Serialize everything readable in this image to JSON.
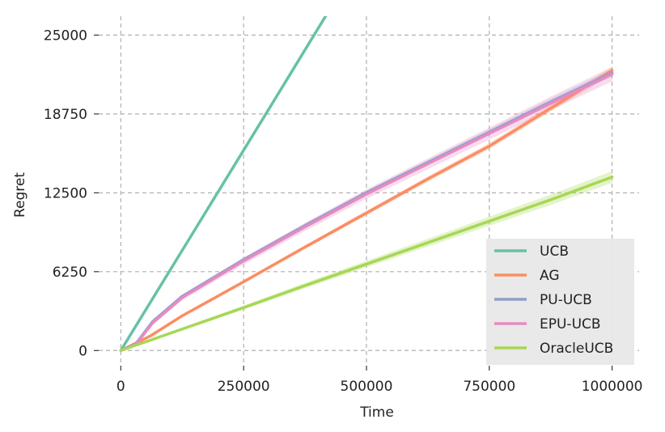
{
  "chart_data": {
    "type": "line",
    "title": "",
    "xlabel": "Time",
    "ylabel": "Regret",
    "xlim": [
      -45000,
      1055000
    ],
    "ylim": [
      -1200,
      26500
    ],
    "x_ticks": [
      0,
      250000,
      500000,
      750000,
      1000000
    ],
    "x_tick_labels": [
      "0",
      "250000",
      "500000",
      "750000",
      "1000000"
    ],
    "y_ticks": [
      0,
      6250,
      12500,
      18750,
      25000
    ],
    "y_tick_labels": [
      "0",
      "6250",
      "12500",
      "18750",
      "25000"
    ],
    "grid": true,
    "legend_position": "lower-right",
    "series": [
      {
        "name": "UCB",
        "color": "#66c2a5",
        "x": [
          0,
          100000,
          200000,
          300000,
          420000
        ],
        "y": [
          0,
          6350,
          12700,
          19050,
          26700
        ],
        "band": 0
      },
      {
        "name": "AG",
        "color": "#fc8d62",
        "x": [
          0,
          60000,
          125000,
          250000,
          375000,
          500000,
          625000,
          750000,
          875000,
          1000000
        ],
        "y": [
          0,
          1150,
          2750,
          5450,
          8200,
          10900,
          13600,
          16200,
          19200,
          22200
        ],
        "band": 250
      },
      {
        "name": "PU-UCB",
        "color": "#8da0cb",
        "x": [
          0,
          30000,
          65000,
          125000,
          250000,
          375000,
          500000,
          625000,
          750000,
          875000,
          1000000
        ],
        "y": [
          0,
          500,
          2300,
          4300,
          7200,
          9900,
          12500,
          14900,
          17300,
          19700,
          22000
        ],
        "band": 250
      },
      {
        "name": "EPU-UCB",
        "color": "#e78ac3",
        "x": [
          0,
          30000,
          65000,
          125000,
          250000,
          375000,
          500000,
          625000,
          750000,
          875000,
          1000000
        ],
        "y": [
          0,
          450,
          2200,
          4200,
          7100,
          9800,
          12400,
          14800,
          17200,
          19600,
          21900
        ],
        "band": 500
      },
      {
        "name": "OracleUCB",
        "color": "#a6d854",
        "x": [
          0,
          125000,
          250000,
          375000,
          500000,
          625000,
          750000,
          875000,
          1000000
        ],
        "y": [
          0,
          1700,
          3400,
          5150,
          6850,
          8550,
          10250,
          11950,
          13750
        ],
        "band": 400
      }
    ]
  }
}
